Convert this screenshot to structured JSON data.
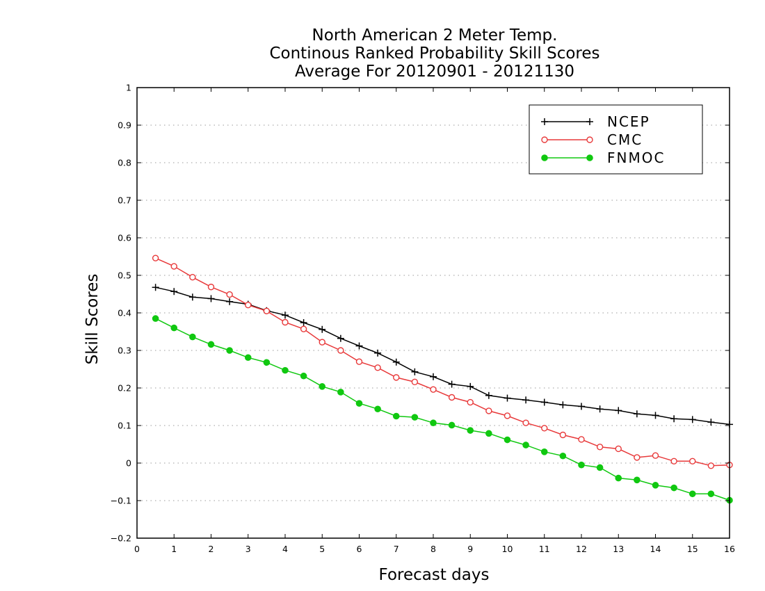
{
  "chart_data": {
    "type": "line",
    "title": [
      "North American 2 Meter Temp.",
      "Continous Ranked Probability Skill Scores",
      "Average For 20120901 - 20121130"
    ],
    "xlabel": "Forecast days",
    "ylabel": "Skill Scores",
    "xlim": [
      0,
      16
    ],
    "ylim": [
      -0.2,
      1
    ],
    "xticks": [
      "0",
      "1",
      "2",
      "3",
      "4",
      "5",
      "6",
      "7",
      "8",
      "9",
      "10",
      "11",
      "12",
      "13",
      "14",
      "15",
      "16"
    ],
    "yticks": [
      "−0.2",
      "−0.1",
      "0",
      "0.1",
      "0.2",
      "0.3",
      "0.4",
      "0.5",
      "0.6",
      "0.7",
      "0.8",
      "0.9",
      "1"
    ],
    "grid": "horizontal-dotted",
    "legend_position": "top-right",
    "x": [
      0.5,
      1,
      1.5,
      2,
      2.5,
      3,
      3.5,
      4,
      4.5,
      5,
      5.5,
      6,
      6.5,
      7,
      7.5,
      8,
      8.5,
      9,
      9.5,
      10,
      10.5,
      11,
      11.5,
      12,
      12.5,
      13,
      13.5,
      14,
      14.5,
      15,
      15.5,
      16
    ],
    "series": [
      {
        "name": "NCEP",
        "color": "#000000",
        "marker": "plus",
        "values": [
          0.468,
          0.457,
          0.442,
          0.438,
          0.43,
          0.423,
          0.406,
          0.394,
          0.374,
          0.356,
          0.332,
          0.312,
          0.293,
          0.269,
          0.243,
          0.23,
          0.21,
          0.204,
          0.18,
          0.173,
          0.168,
          0.162,
          0.155,
          0.151,
          0.144,
          0.14,
          0.131,
          0.127,
          0.118,
          0.116,
          0.109,
          0.103
        ]
      },
      {
        "name": "CMC",
        "color": "#e8393a",
        "marker": "open-circle",
        "values": [
          0.546,
          0.524,
          0.495,
          0.469,
          0.449,
          0.421,
          0.405,
          0.375,
          0.357,
          0.322,
          0.3,
          0.27,
          0.254,
          0.228,
          0.216,
          0.196,
          0.175,
          0.162,
          0.139,
          0.126,
          0.107,
          0.093,
          0.075,
          0.063,
          0.043,
          0.038,
          0.015,
          0.02,
          0.005,
          0.005,
          -0.007,
          -0.005
        ]
      },
      {
        "name": "FNMOC",
        "color": "#10c810",
        "marker": "filled-circle",
        "values": [
          0.385,
          0.36,
          0.336,
          0.316,
          0.3,
          0.281,
          0.268,
          0.247,
          0.232,
          0.204,
          0.189,
          0.159,
          0.144,
          0.125,
          0.122,
          0.107,
          0.101,
          0.087,
          0.079,
          0.062,
          0.048,
          0.03,
          0.019,
          -0.005,
          -0.012,
          -0.04,
          -0.045,
          -0.059,
          -0.066,
          -0.082,
          -0.082,
          -0.099
        ]
      }
    ]
  }
}
